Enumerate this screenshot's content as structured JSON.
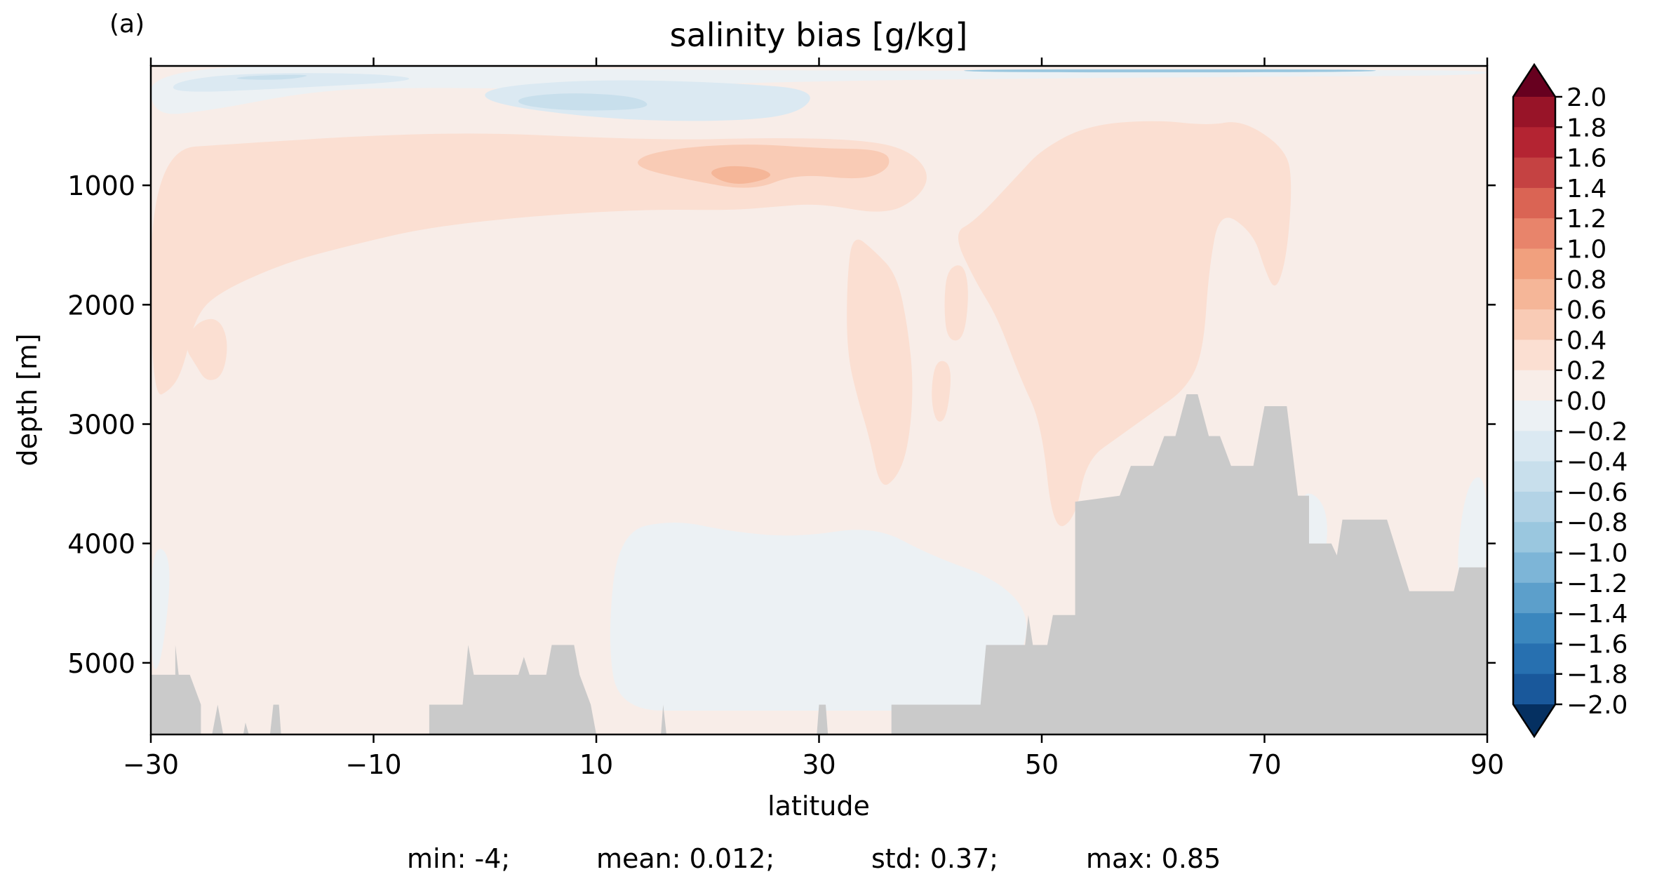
{
  "panel_label": "(a)",
  "colors": {
    "positive_scale": [
      "#f8ede8",
      "#fbdfd2",
      "#f9cbb5",
      "#f5b698",
      "#f1a07e",
      "#e8846b",
      "#da6454",
      "#c54242",
      "#b42432",
      "#981428",
      "#67001f"
    ],
    "negative_scale": [
      "#ecf1f4",
      "#dbe9f2",
      "#c8dfec",
      "#b3d3e6",
      "#9ac7df",
      "#7db5d7",
      "#5c9fcb",
      "#3b87be",
      "#2770b0",
      "#19589b",
      "#053061"
    ],
    "land": "#cacaca"
  },
  "chart_data": {
    "type": "heatmap",
    "title": "salinity bias [g/kg]",
    "xlabel": "latitude",
    "ylabel": "depth [m]",
    "xlim": [
      -30,
      90
    ],
    "ylim": [
      5600,
      0
    ],
    "y_inverted": true,
    "x_ticks": [
      "−30",
      "−10",
      "10",
      "30",
      "50",
      "70",
      "90"
    ],
    "x_tick_values": [
      -30,
      -10,
      10,
      30,
      50,
      70,
      90
    ],
    "y_ticks": [
      "1000",
      "2000",
      "3000",
      "4000",
      "5000"
    ],
    "y_tick_values": [
      1000,
      2000,
      3000,
      4000,
      5000
    ],
    "colorbar": {
      "labels": [
        "2.0",
        "1.8",
        "1.6",
        "1.4",
        "1.2",
        "1.0",
        "0.8",
        "0.6",
        "0.4",
        "0.2",
        "0.0",
        "−0.2",
        "−0.4",
        "−0.6",
        "−0.8",
        "−1.0",
        "−1.2",
        "−1.4",
        "−1.6",
        "−1.8",
        "−2.0"
      ],
      "values": [
        2.0,
        1.8,
        1.6,
        1.4,
        1.2,
        1.0,
        0.8,
        0.6,
        0.4,
        0.2,
        0.0,
        -0.2,
        -0.4,
        -0.6,
        -0.8,
        -1.0,
        -1.2,
        -1.4,
        -1.6,
        -1.8,
        -2.0
      ],
      "colors_top_to_bottom": [
        "#67001f",
        "#981428",
        "#b42432",
        "#c54242",
        "#da6454",
        "#e8846b",
        "#f1a07e",
        "#f5b698",
        "#f9cbb5",
        "#fbdfd2",
        "#f8ede8",
        "#ecf1f4",
        "#dbe9f2",
        "#c8dfec",
        "#b3d3e6",
        "#9ac7df",
        "#7db5d7",
        "#5c9fcb",
        "#3b87be",
        "#2770b0",
        "#19589b",
        "#053061"
      ],
      "extend": "both"
    },
    "regions": [
      {
        "level": 0.3,
        "points": [
          [
            -30,
            700
          ],
          [
            -22,
            650
          ],
          [
            -10,
            580
          ],
          [
            0,
            560
          ],
          [
            10,
            600
          ],
          [
            18,
            620
          ],
          [
            26,
            600
          ],
          [
            34,
            620
          ],
          [
            38,
            700
          ],
          [
            40,
            900
          ],
          [
            39,
            1100
          ],
          [
            36,
            1250
          ],
          [
            30,
            1150
          ],
          [
            26,
            1180
          ],
          [
            22,
            1210
          ],
          [
            15,
            1200
          ],
          [
            5,
            1250
          ],
          [
            -5,
            1350
          ],
          [
            -12,
            1500
          ],
          [
            -18,
            1650
          ],
          [
            -24,
            1900
          ],
          [
            -26,
            2100
          ],
          [
            -27,
            2500
          ],
          [
            -28,
            2700
          ],
          [
            -30,
            2800
          ]
        ]
      },
      {
        "level": 0.3,
        "points": [
          [
            42,
            1400
          ],
          [
            44,
            1300
          ],
          [
            48,
            900
          ],
          [
            50,
            700
          ],
          [
            54,
            500
          ],
          [
            60,
            450
          ],
          [
            65,
            500
          ],
          [
            68,
            450
          ],
          [
            72,
            700
          ],
          [
            72.5,
            1000
          ],
          [
            72,
            1600
          ],
          [
            71,
            1900
          ],
          [
            70,
            1700
          ],
          [
            69,
            1400
          ],
          [
            66,
            1200
          ],
          [
            65,
            1700
          ],
          [
            64.5,
            2400
          ],
          [
            63,
            2700
          ],
          [
            60,
            2900
          ],
          [
            57,
            3100
          ],
          [
            54,
            3300
          ],
          [
            53,
            3800
          ],
          [
            51,
            3900
          ],
          [
            50,
            3000
          ],
          [
            48,
            2600
          ],
          [
            46,
            2100
          ],
          [
            44,
            1800
          ]
        ]
      },
      {
        "level": 0.3,
        "points": [
          [
            33,
            1400
          ],
          [
            35,
            1550
          ],
          [
            37,
            1750
          ],
          [
            38,
            2200
          ],
          [
            38.5,
            2700
          ],
          [
            38,
            3200
          ],
          [
            37,
            3450
          ],
          [
            35.5,
            3550
          ],
          [
            34.5,
            3100
          ],
          [
            33.5,
            2800
          ],
          [
            32.5,
            2400
          ],
          [
            32.5,
            1800
          ]
        ]
      },
      {
        "level": 0.3,
        "points": [
          [
            41.5,
            1700
          ],
          [
            43,
            1650
          ],
          [
            43.5,
            1900
          ],
          [
            43,
            2300
          ],
          [
            41.5,
            2300
          ],
          [
            41.2,
            2000
          ]
        ]
      },
      {
        "level": 0.3,
        "points": [
          [
            40.5,
            2450
          ],
          [
            42,
            2500
          ],
          [
            41.5,
            2950
          ],
          [
            40.5,
            3000
          ],
          [
            40,
            2750
          ]
        ]
      },
      {
        "level": 0.3,
        "points": [
          [
            -26,
            2150
          ],
          [
            -24,
            2100
          ],
          [
            -23,
            2300
          ],
          [
            -23.5,
            2600
          ],
          [
            -25,
            2650
          ],
          [
            -26,
            2500
          ],
          [
            -27,
            2350
          ]
        ]
      },
      {
        "level": 0.5,
        "points": [
          [
            14,
            750
          ],
          [
            18,
            680
          ],
          [
            24,
            650
          ],
          [
            30,
            690
          ],
          [
            36,
            700
          ],
          [
            36.5,
            850
          ],
          [
            34,
            960
          ],
          [
            28,
            900
          ],
          [
            24,
            1050
          ],
          [
            18,
            950
          ],
          [
            13.5,
            850
          ]
        ]
      },
      {
        "level": 0.7,
        "points": [
          [
            20,
            880
          ],
          [
            22,
            830
          ],
          [
            25,
            860
          ],
          [
            26,
            930
          ],
          [
            23,
            1000
          ],
          [
            21,
            960
          ]
        ]
      },
      {
        "level": -0.1,
        "points": [
          [
            -30,
            0
          ],
          [
            -5,
            0
          ],
          [
            15,
            30
          ],
          [
            35,
            40
          ],
          [
            60,
            40
          ],
          [
            90,
            30
          ],
          [
            90,
            80
          ],
          [
            70,
            90
          ],
          [
            55,
            100
          ],
          [
            45,
            110
          ],
          [
            35,
            120
          ],
          [
            20,
            150
          ],
          [
            10,
            200
          ],
          [
            -5,
            180
          ],
          [
            -15,
            200
          ],
          [
            -25,
            380
          ],
          [
            -30,
            420
          ]
        ]
      },
      {
        "level": -0.3,
        "points": [
          [
            -28,
            130
          ],
          [
            -22,
            60
          ],
          [
            -10,
            60
          ],
          [
            -5,
            120
          ],
          [
            -18,
            190
          ],
          [
            -28,
            230
          ]
        ]
      },
      {
        "level": -0.3,
        "points": [
          [
            0,
            180
          ],
          [
            10,
            110
          ],
          [
            22,
            140
          ],
          [
            30,
            200
          ],
          [
            28,
            420
          ],
          [
            20,
            470
          ],
          [
            10,
            440
          ],
          [
            0,
            310
          ]
        ]
      },
      {
        "level": -0.5,
        "points": [
          [
            -21,
            80
          ],
          [
            -15,
            70
          ],
          [
            -18,
            120
          ],
          [
            -23,
            110
          ]
        ]
      },
      {
        "level": -0.5,
        "points": [
          [
            3,
            260
          ],
          [
            8,
            220
          ],
          [
            14,
            260
          ],
          [
            15,
            360
          ],
          [
            8,
            380
          ],
          [
            3,
            330
          ]
        ]
      },
      {
        "level": -0.9,
        "points": [
          [
            43,
            30
          ],
          [
            60,
            28
          ],
          [
            80,
            30
          ],
          [
            80,
            50
          ],
          [
            60,
            55
          ],
          [
            43,
            50
          ]
        ]
      },
      {
        "level": -0.1,
        "points": [
          [
            12,
            3900
          ],
          [
            17,
            3800
          ],
          [
            22,
            3900
          ],
          [
            28,
            3950
          ],
          [
            35,
            3850
          ],
          [
            40,
            4100
          ],
          [
            46,
            4300
          ],
          [
            49,
            4600
          ],
          [
            48,
            5000
          ],
          [
            46,
            5400
          ],
          [
            40,
            5400
          ],
          [
            36,
            5400
          ],
          [
            30,
            5400
          ],
          [
            20,
            5400
          ],
          [
            12,
            5400
          ],
          [
            11,
            4800
          ]
        ]
      },
      {
        "level": -0.1,
        "points": [
          [
            -30,
            4000
          ],
          [
            -28,
            4100
          ],
          [
            -29,
            5000
          ],
          [
            -30,
            5100
          ]
        ]
      },
      {
        "level": -0.1,
        "points": [
          [
            73,
            3500
          ],
          [
            76,
            3700
          ],
          [
            75,
            4400
          ],
          [
            73,
            4400
          ]
        ]
      },
      {
        "level": -0.1,
        "points": [
          [
            88,
            3500
          ],
          [
            90,
            3400
          ],
          [
            90,
            4400
          ],
          [
            87,
            4400
          ]
        ]
      }
    ],
    "bathymetry": [
      [
        -30,
        5100
      ],
      [
        -27.8,
        5100
      ],
      [
        -27.8,
        4850
      ],
      [
        -27.5,
        5100
      ],
      [
        -26.5,
        5100
      ],
      [
        -25.5,
        5350
      ],
      [
        -25.5,
        5600
      ],
      [
        -24.5,
        5600
      ],
      [
        -24,
        5350
      ],
      [
        -23.5,
        5600
      ],
      [
        -21.7,
        5600
      ],
      [
        -21.5,
        5500
      ],
      [
        -21.2,
        5600
      ],
      [
        -19.3,
        5600
      ],
      [
        -19,
        5350
      ],
      [
        -18.5,
        5350
      ],
      [
        -18.3,
        5600
      ],
      [
        -5,
        5600
      ],
      [
        -5,
        5350
      ],
      [
        -2,
        5350
      ],
      [
        -1.5,
        4850
      ],
      [
        -1,
        5100
      ],
      [
        3,
        5100
      ],
      [
        3.5,
        4950
      ],
      [
        4,
        5100
      ],
      [
        5.5,
        5100
      ],
      [
        6,
        4850
      ],
      [
        8,
        4850
      ],
      [
        8.5,
        5100
      ],
      [
        9.5,
        5350
      ],
      [
        10,
        5600
      ],
      [
        15.8,
        5600
      ],
      [
        16,
        5350
      ],
      [
        16.3,
        5600
      ],
      [
        29.8,
        5600
      ],
      [
        30,
        5350
      ],
      [
        30.6,
        5350
      ],
      [
        30.8,
        5600
      ],
      [
        36.5,
        5600
      ],
      [
        36.5,
        5350
      ],
      [
        44.5,
        5350
      ],
      [
        45,
        4850
      ],
      [
        48.5,
        4850
      ],
      [
        48.8,
        4600
      ],
      [
        49.2,
        4850
      ],
      [
        50.5,
        4850
      ],
      [
        51,
        4600
      ],
      [
        53,
        4600
      ],
      [
        53,
        3650
      ],
      [
        57,
        3600
      ],
      [
        58,
        3350
      ],
      [
        60,
        3350
      ],
      [
        61,
        3100
      ],
      [
        62,
        3100
      ],
      [
        63,
        2750
      ],
      [
        64,
        2750
      ],
      [
        65,
        3100
      ],
      [
        66,
        3100
      ],
      [
        67,
        3350
      ],
      [
        69,
        3350
      ],
      [
        70,
        2850
      ],
      [
        72,
        2850
      ],
      [
        73,
        3600
      ],
      [
        74,
        3600
      ],
      [
        74,
        4000
      ],
      [
        76,
        4000
      ],
      [
        76.5,
        4100
      ],
      [
        77,
        3800
      ],
      [
        81,
        3800
      ],
      [
        82,
        4100
      ],
      [
        83,
        4400
      ],
      [
        87,
        4400
      ],
      [
        87.5,
        4200
      ],
      [
        90,
        4200
      ],
      [
        90,
        5600
      ],
      [
        -30,
        5600
      ]
    ],
    "stats": {
      "min": "min: -4;",
      "mean": "mean: 0.012;",
      "std": "std: 0.37;",
      "max": "max: 0.85"
    }
  }
}
